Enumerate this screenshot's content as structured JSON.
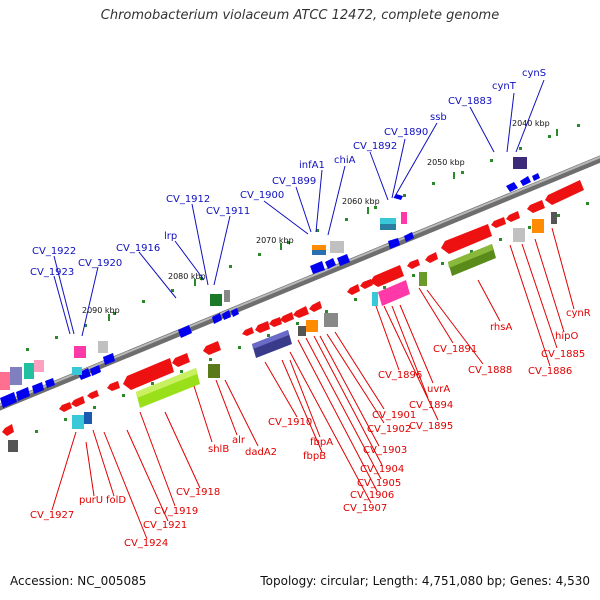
{
  "title": "Chromobacterium violaceum ATCC 12472, complete genome",
  "footer": {
    "accession": "Accession: NC_005085",
    "topology": "Topology: circular; Length: 4,751,080 bp; Genes: 4,530"
  },
  "colors": {
    "backbone": "#8a8a8a",
    "forward": "#0000ee",
    "reverse": "#ee1111",
    "blue_label": "#1010c0",
    "red_label": "#e00000",
    "tick": "#2a8a2a"
  },
  "kbp_markers": [
    {
      "label": "2040 kbp"
    },
    {
      "label": "2050 kbp"
    },
    {
      "label": "2060 kbp"
    },
    {
      "label": "2070 kbp"
    },
    {
      "label": "2080 kbp"
    },
    {
      "label": "2090 kbp"
    }
  ],
  "forward_labels": [
    "cynS",
    "cynT",
    "CV_1883",
    "ssb",
    "CV_1890",
    "CV_1892",
    "chiA",
    "infA1",
    "CV_1899",
    "CV_1900",
    "CV_1911",
    "CV_1912",
    "lrp",
    "CV_1916",
    "CV_1920",
    "CV_1922",
    "CV_1923"
  ],
  "reverse_labels": [
    "cynR",
    "hipO",
    "CV_1885",
    "CV_1886",
    "rhsA",
    "CV_1888",
    "CV_1891",
    "uvrA",
    "CV_1894",
    "CV_1895",
    "CV_1896",
    "CV_1901",
    "CV_1902",
    "CV_1903",
    "CV_1904",
    "CV_1905",
    "CV_1906",
    "CV_1907",
    "fbpA",
    "fbpB",
    "CV_1910",
    "dadA2",
    "alr",
    "shlB",
    "CV_1918",
    "CV_1919",
    "CV_1921",
    "CV_1924",
    "folD",
    "purU",
    "CV_1927"
  ]
}
